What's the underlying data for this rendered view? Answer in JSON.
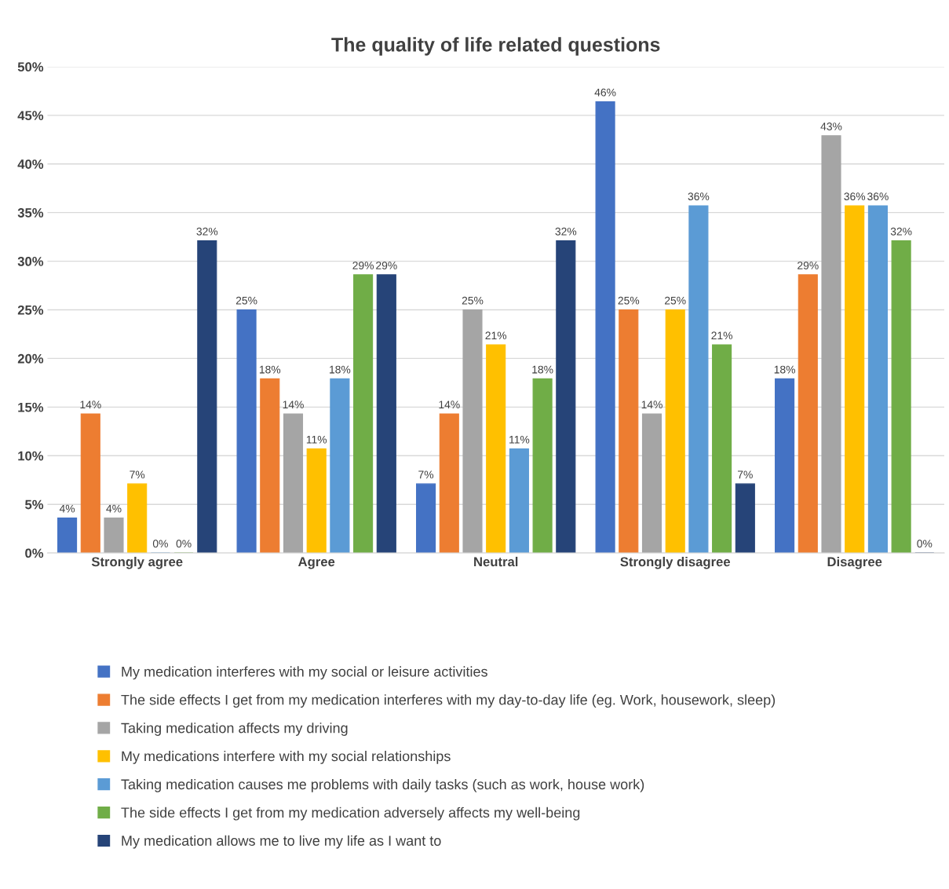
{
  "chart_data": {
    "type": "bar",
    "title": "The quality of life related questions",
    "categories": [
      "Strongly agree",
      "Agree",
      "Neutral",
      "Strongly disagree",
      "Disagree"
    ],
    "series": [
      {
        "name": "My medication interferes with my social or leisure activities",
        "color": "#4472c4",
        "values": [
          3.6,
          25,
          7.1,
          46.4,
          17.9
        ],
        "value_labels": [
          "4%",
          "25%",
          "7%",
          "46%",
          "18%"
        ]
      },
      {
        "name": "The side effects I get from my medication interferes with my day-to-day life (eg. Work, housework, sleep)",
        "color": "#ed7d31",
        "values": [
          14.3,
          17.9,
          14.3,
          25,
          28.6
        ],
        "value_labels": [
          "14%",
          "18%",
          "14%",
          "25%",
          "29%"
        ]
      },
      {
        "name": "Taking medication affects my driving",
        "color": "#a5a5a5",
        "values": [
          3.6,
          14.3,
          25,
          14.3,
          42.9
        ],
        "value_labels": [
          "4%",
          "14%",
          "25%",
          "14%",
          "43%"
        ]
      },
      {
        "name": "My medications interfere with my social relationships",
        "color": "#ffc000",
        "values": [
          7.1,
          10.7,
          21.4,
          25,
          35.7
        ],
        "value_labels": [
          "7%",
          "11%",
          "21%",
          "25%",
          "36%"
        ]
      },
      {
        "name": "Taking medication causes me problems with daily tasks (such as work, house work)",
        "color": "#5b9bd5",
        "values": [
          0,
          17.9,
          10.7,
          35.7,
          35.7
        ],
        "value_labels": [
          "0%",
          "18%",
          "11%",
          "36%",
          "36%"
        ]
      },
      {
        "name": "The side effects I get from my medication adversely affects my well-being",
        "color": "#70ad47",
        "values": [
          0,
          28.6,
          17.9,
          21.4,
          32.1
        ],
        "value_labels": [
          "0%",
          "29%",
          "18%",
          "21%",
          "32%"
        ]
      },
      {
        "name": "My medication allows me to live my life as I want to",
        "color": "#264478",
        "values": [
          32.1,
          28.6,
          32.1,
          7.1,
          0
        ],
        "value_labels": [
          "32%",
          "29%",
          "32%",
          "7%",
          "0%"
        ]
      }
    ],
    "ylim": [
      0,
      50
    ],
    "yticks": [
      {
        "value": 0,
        "label": "0%"
      },
      {
        "value": 5,
        "label": "5%"
      },
      {
        "value": 10,
        "label": "10%"
      },
      {
        "value": 15,
        "label": "15%"
      },
      {
        "value": 20,
        "label": "20%"
      },
      {
        "value": 25,
        "label": "25%"
      },
      {
        "value": 30,
        "label": "30%"
      },
      {
        "value": 35,
        "label": "35%"
      },
      {
        "value": 40,
        "label": "40%"
      },
      {
        "value": 45,
        "label": "45%"
      },
      {
        "value": 50,
        "label": "50%"
      }
    ],
    "grid": "y",
    "legend": "bottom"
  }
}
